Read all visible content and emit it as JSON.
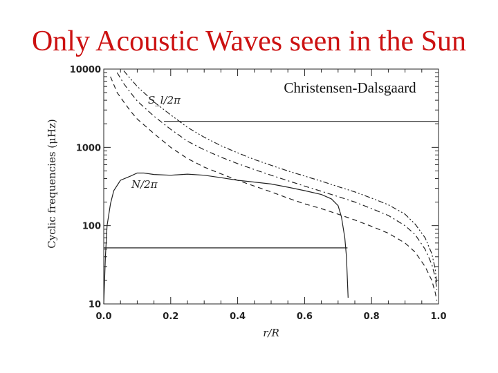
{
  "slide_title": "Only Acoustic Waves seen in the Sun",
  "chart_data": {
    "type": "line",
    "title": "",
    "annotation": "Christensen-Dalsgaard",
    "xlabel": "r/R",
    "ylabel": "Cyclic frequencies (μHz)",
    "xlim": [
      0,
      1
    ],
    "ylim": [
      10,
      10000
    ],
    "y_scale": "log",
    "x_ticks": [
      "0.0",
      "0.2",
      "0.4",
      "0.6",
      "0.8",
      "1.0"
    ],
    "y_ticks": [
      "10",
      "100",
      "1000",
      "10000"
    ],
    "grid": false,
    "series": [
      {
        "name": "N/2π",
        "style": "solid",
        "x": [
          0.0,
          0.005,
          0.01,
          0.02,
          0.03,
          0.05,
          0.08,
          0.1,
          0.12,
          0.15,
          0.2,
          0.25,
          0.3,
          0.35,
          0.4,
          0.45,
          0.5,
          0.55,
          0.6,
          0.65,
          0.68,
          0.7,
          0.71,
          0.72,
          0.725,
          0.73
        ],
        "y": [
          10,
          40,
          100,
          190,
          280,
          380,
          430,
          470,
          470,
          450,
          440,
          455,
          440,
          410,
          380,
          360,
          340,
          310,
          280,
          250,
          220,
          180,
          130,
          70,
          40,
          12
        ]
      },
      {
        "name": "S_l/2π (dashed)",
        "style": "dashed",
        "x": [
          0.02,
          0.04,
          0.06,
          0.08,
          0.1,
          0.15,
          0.2,
          0.25,
          0.3,
          0.35,
          0.4,
          0.45,
          0.5,
          0.55,
          0.6,
          0.65,
          0.7,
          0.75,
          0.8,
          0.85,
          0.9,
          0.93,
          0.96,
          0.98,
          0.99,
          0.995
        ],
        "y": [
          8000,
          5000,
          3800,
          2900,
          2300,
          1500,
          1000,
          720,
          560,
          460,
          380,
          320,
          270,
          225,
          190,
          165,
          140,
          118,
          98,
          80,
          60,
          46,
          30,
          20,
          14,
          11
        ]
      },
      {
        "name": "S_l/2π (dash-dot)",
        "style": "dashdot",
        "x": [
          0.04,
          0.06,
          0.08,
          0.1,
          0.15,
          0.2,
          0.25,
          0.3,
          0.35,
          0.4,
          0.45,
          0.5,
          0.55,
          0.6,
          0.65,
          0.7,
          0.75,
          0.8,
          0.85,
          0.9,
          0.93,
          0.96,
          0.98,
          0.99,
          0.995
        ],
        "y": [
          9000,
          6500,
          5000,
          3900,
          2500,
          1700,
          1200,
          930,
          750,
          620,
          520,
          440,
          375,
          320,
          275,
          235,
          200,
          165,
          135,
          100,
          77,
          50,
          32,
          22,
          15
        ]
      },
      {
        "name": "S_l/2π (dash-dot-dot)",
        "style": "dashdotdot",
        "x": [
          0.06,
          0.08,
          0.1,
          0.15,
          0.2,
          0.25,
          0.3,
          0.35,
          0.4,
          0.45,
          0.5,
          0.55,
          0.6,
          0.65,
          0.7,
          0.75,
          0.8,
          0.85,
          0.9,
          0.93,
          0.96,
          0.98,
          0.99,
          0.995
        ],
        "y": [
          9500,
          7500,
          6000,
          3800,
          2600,
          1800,
          1350,
          1050,
          850,
          700,
          590,
          500,
          430,
          370,
          315,
          270,
          225,
          185,
          140,
          105,
          70,
          44,
          28,
          18
        ]
      },
      {
        "name": "horizontal line (upper)",
        "style": "solid",
        "x": [
          0.18,
          1.0
        ],
        "y": [
          2150,
          2150
        ]
      },
      {
        "name": "horizontal line (lower)",
        "style": "solid",
        "x": [
          0.0,
          0.728
        ],
        "y": [
          52,
          52
        ]
      }
    ],
    "curve_labels": [
      {
        "text": "S_l/2π",
        "series": "S_l/2π"
      },
      {
        "text": "N/2π",
        "series": "N/2π"
      }
    ]
  }
}
